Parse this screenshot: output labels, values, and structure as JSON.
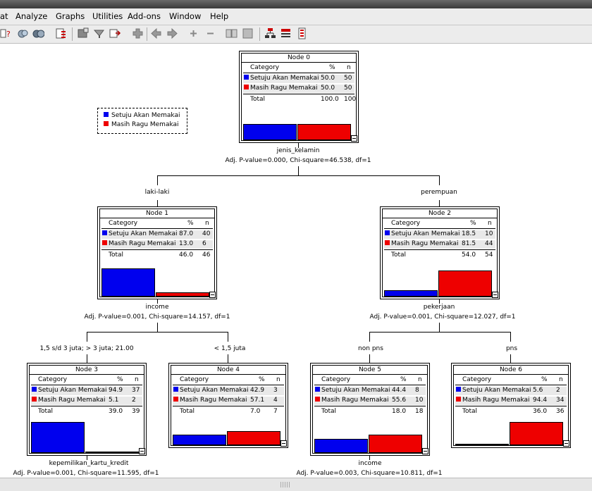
{
  "menu": [
    "at",
    "Analyze",
    "Graphs",
    "Utilities",
    "Add-ons",
    "Window",
    "Help"
  ],
  "legend": [
    {
      "label": "Setuju Akan Memakai",
      "color": "#0000ee"
    },
    {
      "label": "Masih Ragu Memakai",
      "color": "#ee0000"
    }
  ],
  "colors": {
    "setuju": "#0000ee",
    "ragu": "#ee0000"
  },
  "headers": {
    "category": "Category",
    "pct": "%",
    "n": "n"
  },
  "nodes": {
    "n0": {
      "title": "Node 0",
      "rows": [
        {
          "cat": "Setuju Akan Memakai",
          "pct": "50.0",
          "n": "50"
        },
        {
          "cat": "Masih Ragu Memakai",
          "pct": "50.0",
          "n": "50"
        }
      ],
      "total": {
        "label": "Total",
        "pct": "100.0",
        "n": "100"
      },
      "split": [
        0.5,
        0.5
      ]
    },
    "n1": {
      "title": "Node 1",
      "rows": [
        {
          "cat": "Setuju Akan Memakai",
          "pct": "87.0",
          "n": "40"
        },
        {
          "cat": "Masih Ragu Memakai",
          "pct": "13.0",
          "n": "6"
        }
      ],
      "total": {
        "label": "Total",
        "pct": "46.0",
        "n": "46"
      },
      "split": [
        0.87,
        0.13
      ]
    },
    "n2": {
      "title": "Node 2",
      "rows": [
        {
          "cat": "Setuju Akan Memakai",
          "pct": "18.5",
          "n": "10"
        },
        {
          "cat": "Masih Ragu Memakai",
          "pct": "81.5",
          "n": "44"
        }
      ],
      "total": {
        "label": "Total",
        "pct": "54.0",
        "n": "54"
      },
      "split": [
        0.185,
        0.815
      ]
    },
    "n3": {
      "title": "Node 3",
      "rows": [
        {
          "cat": "Setuju Akan Memakai",
          "pct": "94.9",
          "n": "37"
        },
        {
          "cat": "Masih Ragu Memakai",
          "pct": "5.1",
          "n": "2"
        }
      ],
      "total": {
        "label": "Total",
        "pct": "39.0",
        "n": "39"
      },
      "split": [
        0.949,
        0.051
      ]
    },
    "n4": {
      "title": "Node 4",
      "rows": [
        {
          "cat": "Setuju Akan Memakai",
          "pct": "42.9",
          "n": "3"
        },
        {
          "cat": "Masih Ragu Memakai",
          "pct": "57.1",
          "n": "4"
        }
      ],
      "total": {
        "label": "Total",
        "pct": "7.0",
        "n": "7"
      },
      "split": [
        0.429,
        0.571
      ]
    },
    "n5": {
      "title": "Node 5",
      "rows": [
        {
          "cat": "Setuju Akan Memakai",
          "pct": "44.4",
          "n": "8"
        },
        {
          "cat": "Masih Ragu Memakai",
          "pct": "55.6",
          "n": "10"
        }
      ],
      "total": {
        "label": "Total",
        "pct": "18.0",
        "n": "18"
      },
      "split": [
        0.444,
        0.556
      ]
    },
    "n6": {
      "title": "Node 6",
      "rows": [
        {
          "cat": "Setuju Akan Memakai",
          "pct": "5.6",
          "n": "2"
        },
        {
          "cat": "Masih Ragu Memakai",
          "pct": "94.4",
          "n": "34"
        }
      ],
      "total": {
        "label": "Total",
        "pct": "36.0",
        "n": "36"
      },
      "split": [
        0.056,
        0.944
      ]
    }
  },
  "splits": {
    "root": {
      "var": "jenis_kelamin",
      "stat": "Adj. P-value=0.000, Chi-square=46.538, df=1"
    },
    "n1": {
      "var": "income",
      "stat": "Adj. P-value=0.001, Chi-square=14.157, df=1"
    },
    "n2": {
      "var": "pekerjaan",
      "stat": "Adj. P-value=0.001, Chi-square=12.027, df=1"
    },
    "n3": {
      "var": "kepemilikan_kartu_kredit",
      "stat": "Adj. P-value=0.001, Chi-square=11.595, df=1"
    },
    "n5": {
      "var": "income",
      "stat": "Adj. P-value=0.003, Chi-square=10.811, df=1"
    }
  },
  "branches": {
    "laki": "laki-laki",
    "perempuan": "perempuan",
    "inc_hi": "1,5 s/d 3 juta; > 3 juta; 21.00",
    "inc_lo": "< 1,5 juta",
    "nonpns": "non pns",
    "pns": "pns"
  }
}
